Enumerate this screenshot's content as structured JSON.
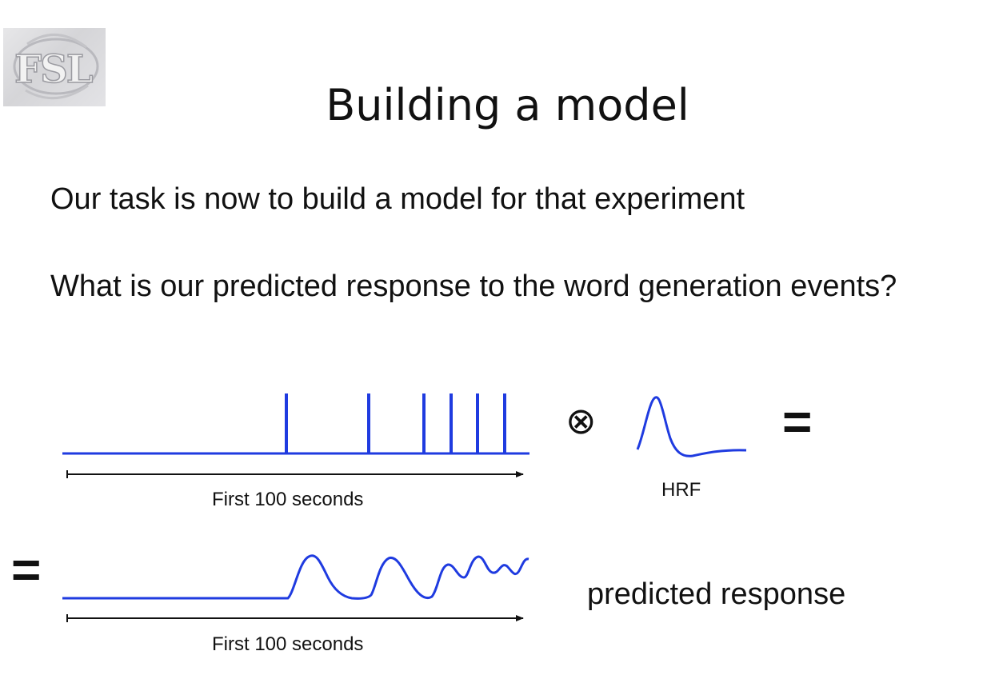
{
  "logo": {
    "text": "FSL"
  },
  "slide": {
    "title": "Building a model",
    "bullets": [
      "Our task is now to build a model for that experiment",
      "What is our predicted response to the word generation events?"
    ]
  },
  "diagram": {
    "stimulus_axis_label": "First 100 seconds",
    "hrf_label": "HRF",
    "response_axis_label": "First 100 seconds",
    "result_label": "predicted response",
    "convolution_symbol": "⊗",
    "equals_symbol": "=",
    "line_color": "#1f3be0",
    "stimulus_event_count": 6
  }
}
